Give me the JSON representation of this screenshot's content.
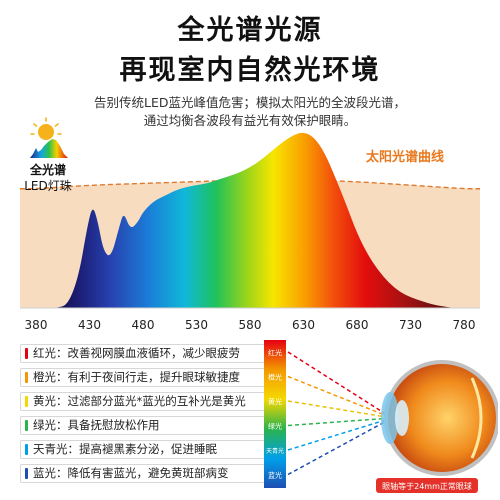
{
  "header": {
    "title_line1": "全光谱光源",
    "title_line2": "再现室内自然光环境",
    "subtitle_line1": "告别传统LED蓝光峰值危害；模拟太阳光的全波段光谱，",
    "subtitle_line2": "通过均衡各波段有益光有效保护眼睛。"
  },
  "badge": {
    "line1": "全光谱",
    "line2": "LED灯珠",
    "icon": "sun-icon"
  },
  "chart_data": {
    "type": "area",
    "title": "",
    "xlabel": "",
    "ylabel": "",
    "xlim": [
      380,
      780
    ],
    "ylim": [
      0,
      100
    ],
    "x_ticks": [
      380,
      430,
      480,
      530,
      580,
      630,
      680,
      730,
      780
    ],
    "series": [
      {
        "name": "全光谱LED灯珠",
        "x": [
          380,
          400,
          410,
          420,
          428,
          433,
          438,
          443,
          450,
          458,
          462,
          468,
          475,
          480,
          490,
          500,
          510,
          520,
          530,
          540,
          550,
          560,
          570,
          580,
          590,
          600,
          610,
          620,
          630,
          640,
          650,
          660,
          670,
          680,
          690,
          700,
          710,
          720,
          730,
          740,
          750,
          760,
          770,
          780
        ],
        "y": [
          0,
          0,
          2,
          18,
          46,
          58,
          48,
          32,
          28,
          46,
          54,
          44,
          48,
          54,
          60,
          63,
          66,
          68,
          69,
          70,
          72,
          74,
          76,
          79,
          83,
          88,
          93,
          97,
          99,
          96,
          87,
          73,
          58,
          42,
          30,
          21,
          14,
          9,
          6,
          4,
          2,
          1,
          0,
          0
        ]
      },
      {
        "name": "太阳光谱曲线",
        "x": [
          380,
          430,
          480,
          530,
          580,
          630,
          680,
          730,
          780
        ],
        "y": [
          67,
          69,
          70,
          71,
          72,
          72,
          71,
          69,
          67
        ]
      }
    ],
    "annotation": "太阳光谱曲线",
    "colors": {
      "sun_fill": "#f8dcc0",
      "sun_line": "#e07a2c",
      "annotation": "#e8791e"
    }
  },
  "legend": [
    {
      "label": "红光：改善视网膜血液循环，减少眼疲劳",
      "color": "#e60012"
    },
    {
      "label": "橙光：有利于夜间行走，提升眼球敏捷度",
      "color": "#f39800"
    },
    {
      "label": "黄光：过滤部分蓝光*蓝光的互补光是黄光",
      "color": "#f5d800"
    },
    {
      "label": "绿光：具备抚慰放松作用",
      "color": "#2cb34a"
    },
    {
      "label": "天青光：提高褪黑素分泌，促进睡眠",
      "color": "#00a0e9"
    },
    {
      "label": "蓝光：降低有害蓝光，避免黄斑部病变",
      "color": "#1d4fb3"
    }
  ],
  "eye_diagram": {
    "bands": [
      {
        "label": "红光",
        "color": "#e60012"
      },
      {
        "label": "橙光",
        "color": "#f39800"
      },
      {
        "label": "黄光",
        "color": "#e8c200"
      },
      {
        "label": "绿光",
        "color": "#2cb34a"
      },
      {
        "label": "天青光",
        "color": "#00a0e9"
      },
      {
        "label": "蓝光",
        "color": "#1d4fb3"
      }
    ],
    "caption": "眼轴等于24mm正常眼球"
  }
}
